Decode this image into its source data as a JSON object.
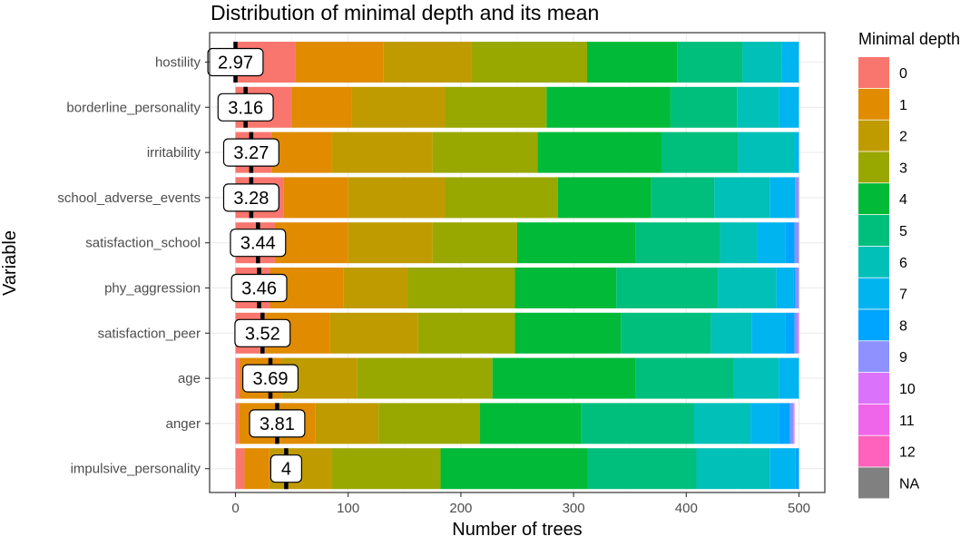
{
  "chart_data": {
    "type": "bar",
    "orientation": "horizontal",
    "stacked": true,
    "title": "Distribution of minimal depth and its mean",
    "xlabel": "Number of trees",
    "ylabel": "Variable",
    "xlim": [
      0,
      500
    ],
    "xticks": [
      0,
      100,
      200,
      300,
      400,
      500
    ],
    "grid": true,
    "legend_title": "Minimal depth",
    "legend_position": "right",
    "series_labels": [
      "0",
      "1",
      "2",
      "3",
      "4",
      "5",
      "6",
      "7",
      "8",
      "9",
      "10",
      "11",
      "12",
      "NA"
    ],
    "colors": [
      "#F8766D",
      "#E08B00",
      "#C09B00",
      "#99A800",
      "#00BA38",
      "#00BF7D",
      "#00C0B8",
      "#00B4EF",
      "#00A5FF",
      "#8F91FF",
      "#DB72FB",
      "#F066EA",
      "#FF62BC",
      "#808080"
    ],
    "categories": [
      "hostility",
      "borderline_personality",
      "irritability",
      "school_adverse_events",
      "satisfaction_school",
      "phy_aggression",
      "satisfaction_peer",
      "age",
      "anger",
      "impulsive_personality"
    ],
    "mean_labels": [
      "2.97",
      "3.16",
      "3.27",
      "3.28",
      "3.44",
      "3.46",
      "3.52",
      "3.69",
      "3.81",
      "4"
    ],
    "mean_positions": [
      0,
      9,
      14,
      14,
      20,
      21,
      24,
      31,
      37,
      45
    ],
    "counts": [
      [
        53,
        78,
        78,
        103,
        80,
        58,
        35,
        15,
        0,
        0,
        0,
        0,
        0,
        0
      ],
      [
        50,
        53,
        83,
        90,
        110,
        59,
        37,
        18,
        0,
        0,
        0,
        0,
        0,
        0
      ],
      [
        32,
        53,
        90,
        93,
        110,
        68,
        50,
        4,
        0,
        0,
        0,
        0,
        0,
        0
      ],
      [
        43,
        57,
        86,
        100,
        83,
        56,
        49,
        23,
        0,
        3,
        0,
        0,
        0,
        0
      ],
      [
        35,
        65,
        75,
        75,
        105,
        75,
        33,
        25,
        8,
        4,
        0,
        0,
        0,
        0
      ],
      [
        31,
        65,
        57,
        95,
        90,
        90,
        52,
        15,
        2,
        3,
        0,
        0,
        0,
        0
      ],
      [
        27,
        57,
        78,
        86,
        94,
        80,
        36,
        30,
        8,
        3,
        1,
        0,
        0,
        0
      ],
      [
        4,
        37,
        67,
        120,
        127,
        87,
        40,
        18,
        0,
        0,
        0,
        0,
        0,
        0
      ],
      [
        3,
        68,
        56,
        90,
        90,
        100,
        50,
        25,
        10,
        3,
        1,
        0,
        0,
        0
      ],
      [
        8,
        22,
        55,
        97,
        130,
        97,
        65,
        23,
        3,
        0,
        0,
        0,
        0,
        0
      ]
    ]
  }
}
